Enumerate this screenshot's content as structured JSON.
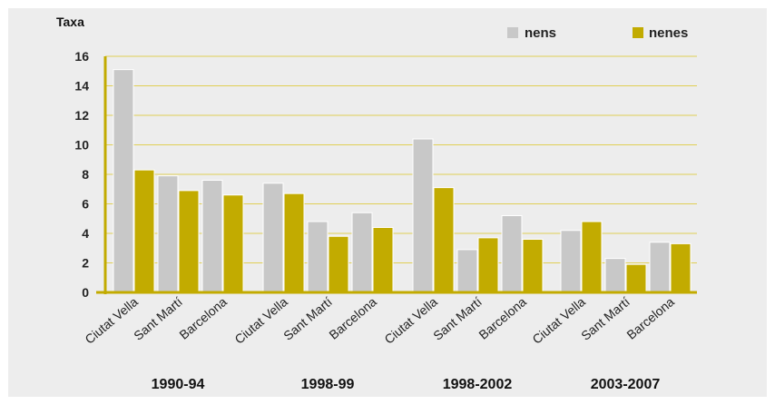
{
  "chart_data": {
    "type": "bar",
    "ylabel": "Taxa",
    "ylim": [
      0,
      16
    ],
    "yticks": [
      0,
      2,
      4,
      6,
      8,
      10,
      12,
      14,
      16
    ],
    "grid": true,
    "legend_position": "top-right",
    "colors": {
      "nens": "#c8c8c8",
      "nenes": "#c2ab00",
      "axis": "#c2ab00",
      "grid": "#e0cf55"
    },
    "groups": [
      {
        "label": "1990-94",
        "categories": [
          "Ciutat Vella",
          "Sant Martí",
          "Barcelona"
        ]
      },
      {
        "label": "1998-99",
        "categories": [
          "Ciutat Vella",
          "Sant Martí",
          "Barcelona"
        ]
      },
      {
        "label": "1998-2002",
        "categories": [
          "Ciutat Vella",
          "Sant Martí",
          "Barcelona"
        ]
      },
      {
        "label": "2003-2007",
        "categories": [
          "Ciutat Vella",
          "Sant Martí",
          "Barcelona"
        ]
      }
    ],
    "series": [
      {
        "name": "nens",
        "values": [
          15.1,
          7.9,
          7.6,
          7.4,
          4.8,
          5.4,
          10.4,
          2.9,
          5.2,
          4.2,
          2.3,
          3.4
        ]
      },
      {
        "name": "nenes",
        "values": [
          8.3,
          6.9,
          6.6,
          6.7,
          3.8,
          4.4,
          7.1,
          3.7,
          3.6,
          4.8,
          1.9,
          3.3
        ]
      }
    ]
  }
}
